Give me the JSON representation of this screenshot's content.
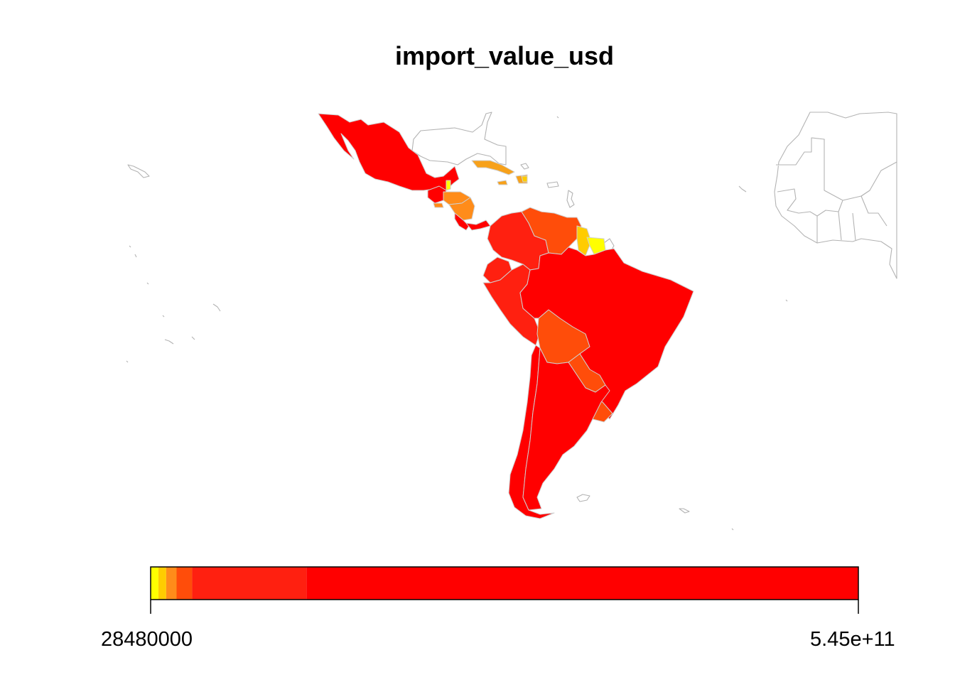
{
  "title": "import_value_usd",
  "legend": {
    "min_label": "28480000",
    "max_label": "5.45e+11",
    "min_value": 28480000,
    "max_value": 545000000000,
    "bins": [
      {
        "from": 28480000,
        "to": 6000000000,
        "color": "#ffff00"
      },
      {
        "from": 6000000000,
        "to": 12000000000,
        "color": "#ffcc00"
      },
      {
        "from": 12000000000,
        "to": 20000000000,
        "color": "#ff8c1a"
      },
      {
        "from": 20000000000,
        "to": 32000000000,
        "color": "#ff4d0a"
      },
      {
        "from": 32000000000,
        "to": 120000000000,
        "color": "#ff2010"
      },
      {
        "from": 120000000000,
        "to": 545000000000,
        "color": "#ff0000"
      }
    ]
  },
  "colors": {
    "c1": "#ffff00",
    "c2": "#ffcc00",
    "c3": "#f7a11a",
    "c4": "#ff8c1a",
    "c5": "#ff4d0a",
    "c6": "#ff2010",
    "c7": "#ff0000",
    "outline": "#b3b3b3"
  }
}
